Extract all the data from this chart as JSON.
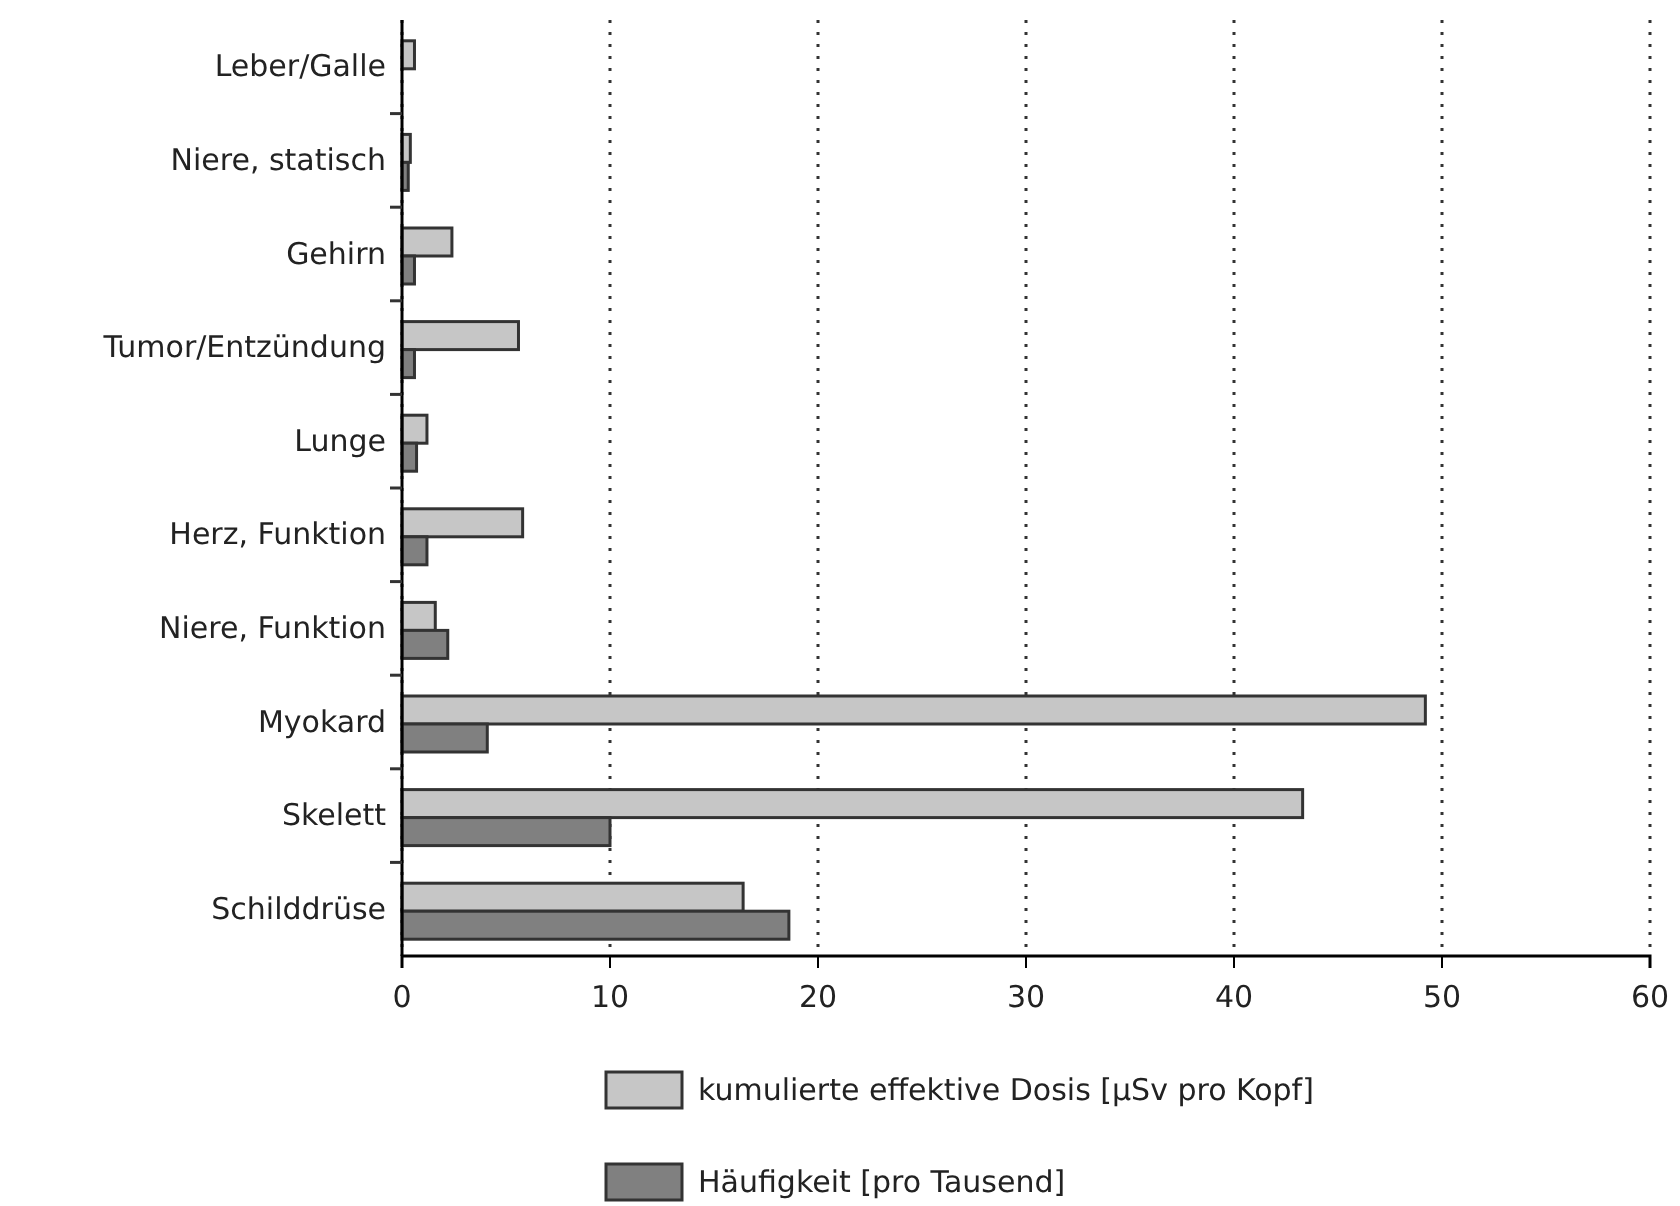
{
  "chart_data": {
    "type": "bar",
    "orientation": "horizontal",
    "categories": [
      "Leber/Galle",
      "Niere, statisch",
      "Gehirn",
      "Tumor/Entzündung",
      "Lunge",
      "Herz, Funktion",
      "Niere, Funktion",
      "Myokard",
      "Skelett",
      "Schilddrüse"
    ],
    "series": [
      {
        "name": "kumulierte effektive Dosis [µSv pro Kopf]",
        "color": "#c6c6c6",
        "values": [
          0.6,
          0.4,
          2.4,
          5.6,
          1.2,
          5.8,
          1.6,
          49.2,
          43.3,
          16.4
        ]
      },
      {
        "name": "Häufigkeit [pro Tausend]",
        "color": "#808080",
        "values": [
          0,
          0.3,
          0.6,
          0.6,
          0.7,
          1.2,
          2.2,
          4.1,
          10.0,
          18.6
        ]
      }
    ],
    "xlim": [
      0,
      60
    ],
    "xticks": [
      0,
      10,
      20,
      30,
      40,
      50,
      60
    ],
    "grid": "x",
    "legend": "bottom"
  }
}
